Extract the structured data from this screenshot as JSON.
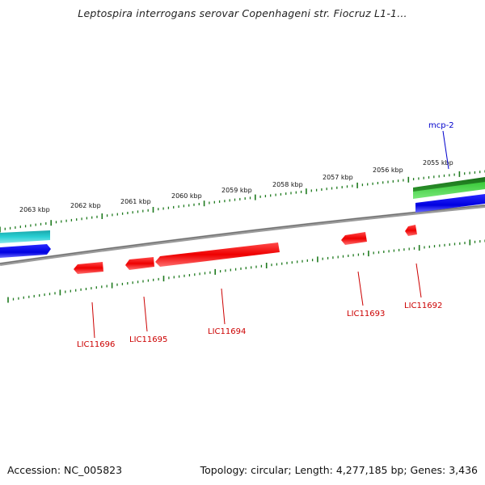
{
  "title": "Leptospira interrogans serovar Copenhageni str. Fiocruz L1-1...",
  "footer": {
    "accession": "Accession: NC_005823",
    "summary": "Topology: circular; Length: 4,277,185 bp; Genes: 3,436"
  },
  "kbp_labels": [
    "2063 kbp",
    "2062 kbp",
    "2061 kbp",
    "2060 kbp",
    "2059 kbp",
    "2058 kbp",
    "2057 kbp",
    "2056 kbp",
    "2055 kbp"
  ],
  "gene_labels": {
    "mcp2": "mcp-2",
    "lic11696": "LIC11696",
    "lic11695": "LIC11695",
    "lic11694": "LIC11694",
    "lic11693": "LIC11693",
    "lic11692": "LIC11692"
  },
  "colors": {
    "backbone": "#808080",
    "tick": "#1e7a1e",
    "reverse_gene": "#ee1111",
    "forward_gene": "#0000ee",
    "cyan_feature": "#22c4c8",
    "green_feature": "#2a9a2a",
    "label_red": "#cc0000",
    "label_blue": "#0000cc"
  }
}
